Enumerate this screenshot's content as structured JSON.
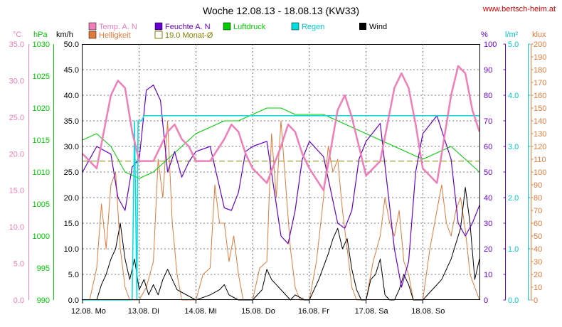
{
  "title": "Woche 12.08.13 - 18.08.13 (KW33)",
  "site": "www.bertsch-heim.at",
  "colors": {
    "temp": "#ef7eb9",
    "humidity": "#6600cc",
    "pressure": "#00cc00",
    "rain": "#00dddd",
    "wind": "#000000",
    "brightness": "#e07a3a",
    "monthavg": "#808000",
    "grid": "#000000"
  },
  "legend": {
    "temp": "Temp. A. N",
    "humidity": "Feuchte A. N",
    "pressure": "Luftdruck",
    "rain": "Regen",
    "wind": "Wind",
    "brightness": "Helligkeit",
    "monthavg": "19.0 Monat-Ø"
  },
  "axes": {
    "temp": {
      "unit": "°C",
      "ticks": [
        "35.0",
        "30.0",
        "25.0",
        "20.0",
        "15.0",
        "10.0",
        "5.0",
        "0.0"
      ]
    },
    "pressure": {
      "unit": "hPa",
      "ticks": [
        "1030",
        "1025",
        "1020",
        "1015",
        "1010",
        "1005",
        "1000",
        "995",
        "990"
      ]
    },
    "wind": {
      "unit": "km/h",
      "ticks": [
        "50.0",
        "45.0",
        "40.0",
        "35.0",
        "30.0",
        "25.0",
        "20.0",
        "15.0",
        "10.0",
        "5.0",
        "0.0"
      ]
    },
    "humidity": {
      "unit": "%",
      "ticks": [
        "100",
        "90",
        "80",
        "70",
        "60",
        "50",
        "40",
        "30",
        "20",
        "10",
        "0"
      ]
    },
    "rain": {
      "unit": "l/m²",
      "ticks": [
        "5.0",
        "4.0",
        "3.0",
        "2.0",
        "1.0",
        "0.0"
      ]
    },
    "brightness": {
      "unit": "klux",
      "ticks": [
        "200",
        "190",
        "180",
        "170",
        "160",
        "150",
        "140",
        "130",
        "120",
        "110",
        "100",
        "90",
        "80",
        "70",
        "60",
        "50",
        "40",
        "30",
        "20",
        "10",
        "0"
      ]
    }
  },
  "days": [
    "12.08.  Mo",
    "13.08.  Di",
    "14.08.  Mi",
    "15.08.  Do",
    "16.08.  Fr",
    "17.08.  Sa",
    "18.08.  So"
  ],
  "chart_data": {
    "type": "line",
    "x_unit": "hours since 12.08. 00:00",
    "x_range": [
      0,
      168
    ],
    "grid": true,
    "monthly_average_temp": 19.0,
    "series": [
      {
        "name": "Temp. A. N",
        "axis": "temp",
        "x": [
          0,
          6,
          12,
          15,
          18,
          21,
          24,
          30,
          36,
          39,
          42,
          45,
          48,
          54,
          60,
          63,
          66,
          69,
          72,
          78,
          84,
          87,
          90,
          93,
          96,
          102,
          108,
          111,
          114,
          117,
          120,
          126,
          132,
          135,
          138,
          141,
          144,
          150,
          156,
          159,
          162,
          165,
          168
        ],
        "values": [
          20,
          18,
          28,
          30,
          29,
          23,
          19,
          19,
          23,
          24,
          22,
          21,
          19,
          19,
          22,
          24,
          23,
          20,
          18,
          16,
          21,
          24,
          23,
          20,
          18,
          15,
          26,
          28,
          25,
          21,
          17,
          19,
          29,
          31,
          29,
          24,
          18,
          16,
          28,
          32,
          31,
          26,
          23
        ]
      },
      {
        "name": "Feuchte A. N",
        "axis": "humidity",
        "x": [
          0,
          6,
          12,
          15,
          18,
          21,
          24,
          27,
          30,
          33,
          36,
          39,
          42,
          45,
          48,
          54,
          60,
          63,
          66,
          69,
          72,
          78,
          84,
          87,
          90,
          93,
          96,
          102,
          108,
          111,
          114,
          117,
          120,
          126,
          132,
          135,
          138,
          141,
          144,
          150,
          156,
          159,
          162,
          165,
          168
        ],
        "values": [
          50,
          60,
          57,
          40,
          35,
          52,
          55,
          82,
          84,
          78,
          50,
          58,
          48,
          54,
          58,
          60,
          36,
          35,
          42,
          58,
          60,
          62,
          25,
          22,
          35,
          55,
          62,
          56,
          30,
          28,
          35,
          55,
          62,
          69,
          20,
          5,
          15,
          50,
          65,
          72,
          55,
          30,
          25,
          30,
          37
        ]
      },
      {
        "name": "Luftdruck",
        "axis": "pressure",
        "x": [
          0,
          6,
          12,
          18,
          24,
          30,
          36,
          42,
          48,
          54,
          60,
          66,
          72,
          78,
          84,
          90,
          96,
          102,
          108,
          114,
          120,
          126,
          132,
          138,
          144,
          150,
          156,
          162,
          168
        ],
        "values": [
          1015,
          1016,
          1014,
          1010,
          1009,
          1010,
          1012,
          1014,
          1016,
          1017,
          1018,
          1018,
          1019,
          1020,
          1020,
          1019,
          1019,
          1019,
          1018,
          1017,
          1016,
          1015,
          1014,
          1013,
          1012,
          1013,
          1014,
          1012,
          1010
        ]
      },
      {
        "name": "Regen",
        "axis": "rain",
        "x": [
          0,
          20,
          21,
          22,
          23,
          23.5,
          24,
          25,
          26,
          168
        ],
        "values": [
          0,
          0,
          0,
          3.5,
          0,
          3.5,
          3.5,
          3.5,
          3.6,
          3.6
        ]
      },
      {
        "name": "Wind",
        "axis": "wind",
        "x": [
          0,
          6,
          8,
          10,
          12,
          14,
          16,
          18,
          20,
          22,
          24,
          26,
          28,
          30,
          32,
          34,
          36,
          40,
          48,
          54,
          58,
          60,
          62,
          66,
          72,
          76,
          78,
          80,
          84,
          88,
          90,
          94,
          96,
          100,
          104,
          106,
          108,
          110,
          112,
          114,
          116,
          118,
          120,
          122,
          124,
          126,
          128,
          130,
          132,
          134,
          136,
          138,
          140,
          142,
          144,
          148,
          152,
          156,
          160,
          162,
          164,
          166,
          168
        ],
        "values": [
          0,
          0,
          3,
          5,
          8,
          10,
          15,
          8,
          4,
          8,
          2,
          4,
          1,
          3,
          1,
          4,
          6,
          2,
          0,
          1,
          2,
          3,
          1,
          0,
          0,
          2,
          6,
          4,
          2,
          0,
          1,
          0,
          0,
          4,
          9,
          12,
          14,
          10,
          12,
          6,
          2,
          0,
          0,
          4,
          5,
          8,
          1,
          0,
          0,
          2,
          5,
          3,
          0,
          0,
          0,
          2,
          4,
          8,
          14,
          22,
          15,
          4,
          8
        ]
      },
      {
        "name": "Helligkeit",
        "axis": "brightness",
        "x": [
          0,
          3,
          6,
          8,
          10,
          12,
          14,
          16,
          18,
          20,
          22,
          24,
          27,
          30,
          32,
          34,
          36,
          38,
          40,
          42,
          44,
          48,
          51,
          54,
          56,
          58,
          60,
          62,
          64,
          66,
          68,
          72,
          75,
          78,
          80,
          82,
          84,
          86,
          88,
          90,
          92,
          96,
          99,
          102,
          104,
          106,
          108,
          110,
          112,
          114,
          116,
          120,
          123,
          126,
          128,
          130,
          132,
          134,
          136,
          138,
          140,
          144,
          147,
          150,
          152,
          154,
          156,
          158,
          160,
          162,
          164,
          168
        ],
        "values": [
          0,
          0,
          25,
          75,
          40,
          90,
          100,
          40,
          10,
          0,
          0,
          0,
          10,
          30,
          110,
          80,
          140,
          60,
          20,
          0,
          0,
          0,
          20,
          25,
          90,
          60,
          60,
          30,
          50,
          20,
          0,
          0,
          25,
          30,
          130,
          80,
          140,
          90,
          40,
          10,
          0,
          0,
          30,
          80,
          120,
          100,
          110,
          70,
          40,
          10,
          0,
          0,
          30,
          50,
          80,
          60,
          50,
          70,
          30,
          20,
          0,
          0,
          40,
          70,
          90,
          60,
          50,
          70,
          80,
          55,
          20,
          0
        ]
      }
    ]
  }
}
